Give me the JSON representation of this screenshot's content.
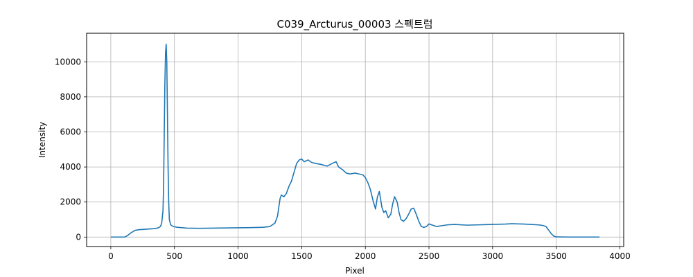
{
  "chart_data": {
    "type": "line",
    "title": "C039_Arcturus_00003 스펙트럼",
    "xlabel": "Pixel",
    "ylabel": "Intensity",
    "xlim": [
      -190,
      4030
    ],
    "ylim": [
      -540,
      11630
    ],
    "x_ticks": [
      0,
      500,
      1000,
      1500,
      2000,
      2500,
      3000,
      3500,
      4000
    ],
    "y_ticks": [
      0,
      2000,
      4000,
      6000,
      8000,
      10000
    ],
    "grid": true,
    "series": [
      {
        "color": "#1f77b4",
        "x": [
          0,
          60,
          110,
          130,
          160,
          190,
          220,
          260,
          300,
          340,
          370,
          390,
          400,
          410,
          415,
          420,
          425,
          430,
          435,
          440,
          445,
          450,
          455,
          460,
          470,
          490,
          520,
          600,
          700,
          800,
          900,
          1000,
          1100,
          1200,
          1250,
          1290,
          1310,
          1330,
          1340,
          1360,
          1380,
          1400,
          1420,
          1440,
          1460,
          1480,
          1500,
          1520,
          1550,
          1580,
          1610,
          1650,
          1700,
          1740,
          1770,
          1790,
          1820,
          1850,
          1880,
          1920,
          1950,
          1980,
          2000,
          2020,
          2040,
          2060,
          2080,
          2095,
          2110,
          2130,
          2145,
          2160,
          2180,
          2200,
          2215,
          2230,
          2250,
          2265,
          2280,
          2300,
          2320,
          2340,
          2360,
          2380,
          2400,
          2420,
          2440,
          2460,
          2480,
          2500,
          2520,
          2540,
          2560,
          2600,
          2650,
          2700,
          2750,
          2800,
          2850,
          2900,
          2950,
          3000,
          3050,
          3100,
          3150,
          3200,
          3250,
          3300,
          3350,
          3380,
          3400,
          3420,
          3440,
          3460,
          3480,
          3500,
          3600,
          3700,
          3800,
          3840
        ],
        "values": [
          0,
          0,
          0,
          80,
          250,
          380,
          420,
          440,
          460,
          480,
          520,
          600,
          800,
          1500,
          3000,
          6000,
          8800,
          10500,
          11000,
          10000,
          7000,
          4000,
          2000,
          1000,
          700,
          600,
          560,
          510,
          500,
          510,
          520,
          530,
          540,
          560,
          600,
          800,
          1200,
          2200,
          2400,
          2300,
          2500,
          2900,
          3200,
          3700,
          4200,
          4400,
          4450,
          4300,
          4400,
          4250,
          4200,
          4150,
          4050,
          4200,
          4300,
          4000,
          3850,
          3650,
          3600,
          3650,
          3600,
          3550,
          3400,
          3100,
          2700,
          2100,
          1600,
          2300,
          2600,
          1700,
          1400,
          1500,
          1100,
          1300,
          1900,
          2300,
          2000,
          1400,
          1000,
          900,
          1050,
          1300,
          1600,
          1650,
          1300,
          900,
          600,
          550,
          600,
          750,
          700,
          650,
          600,
          650,
          700,
          720,
          700,
          680,
          690,
          700,
          710,
          720,
          730,
          740,
          760,
          750,
          740,
          720,
          700,
          680,
          650,
          600,
          400,
          200,
          60,
          10,
          0,
          0,
          0,
          0
        ]
      }
    ]
  }
}
